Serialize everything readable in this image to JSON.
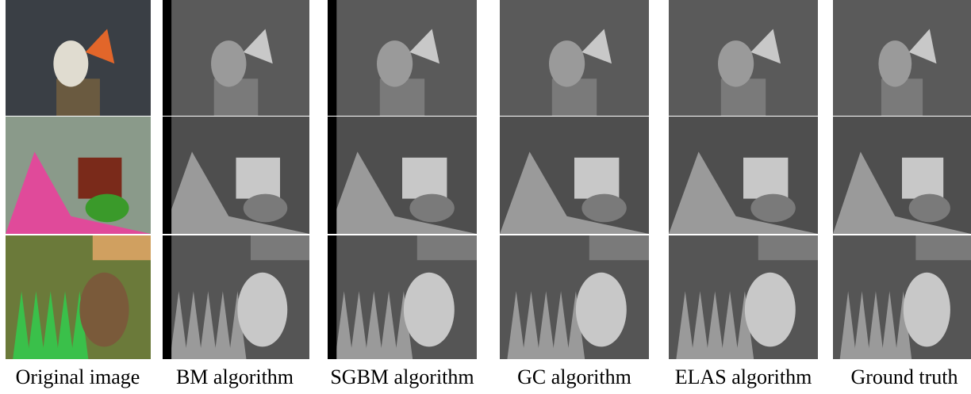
{
  "captions": [
    "Original image",
    "BM algorithm",
    "SGBM algorithm",
    "GC algorithm",
    "ELAS algorithm",
    "Ground truth"
  ]
}
